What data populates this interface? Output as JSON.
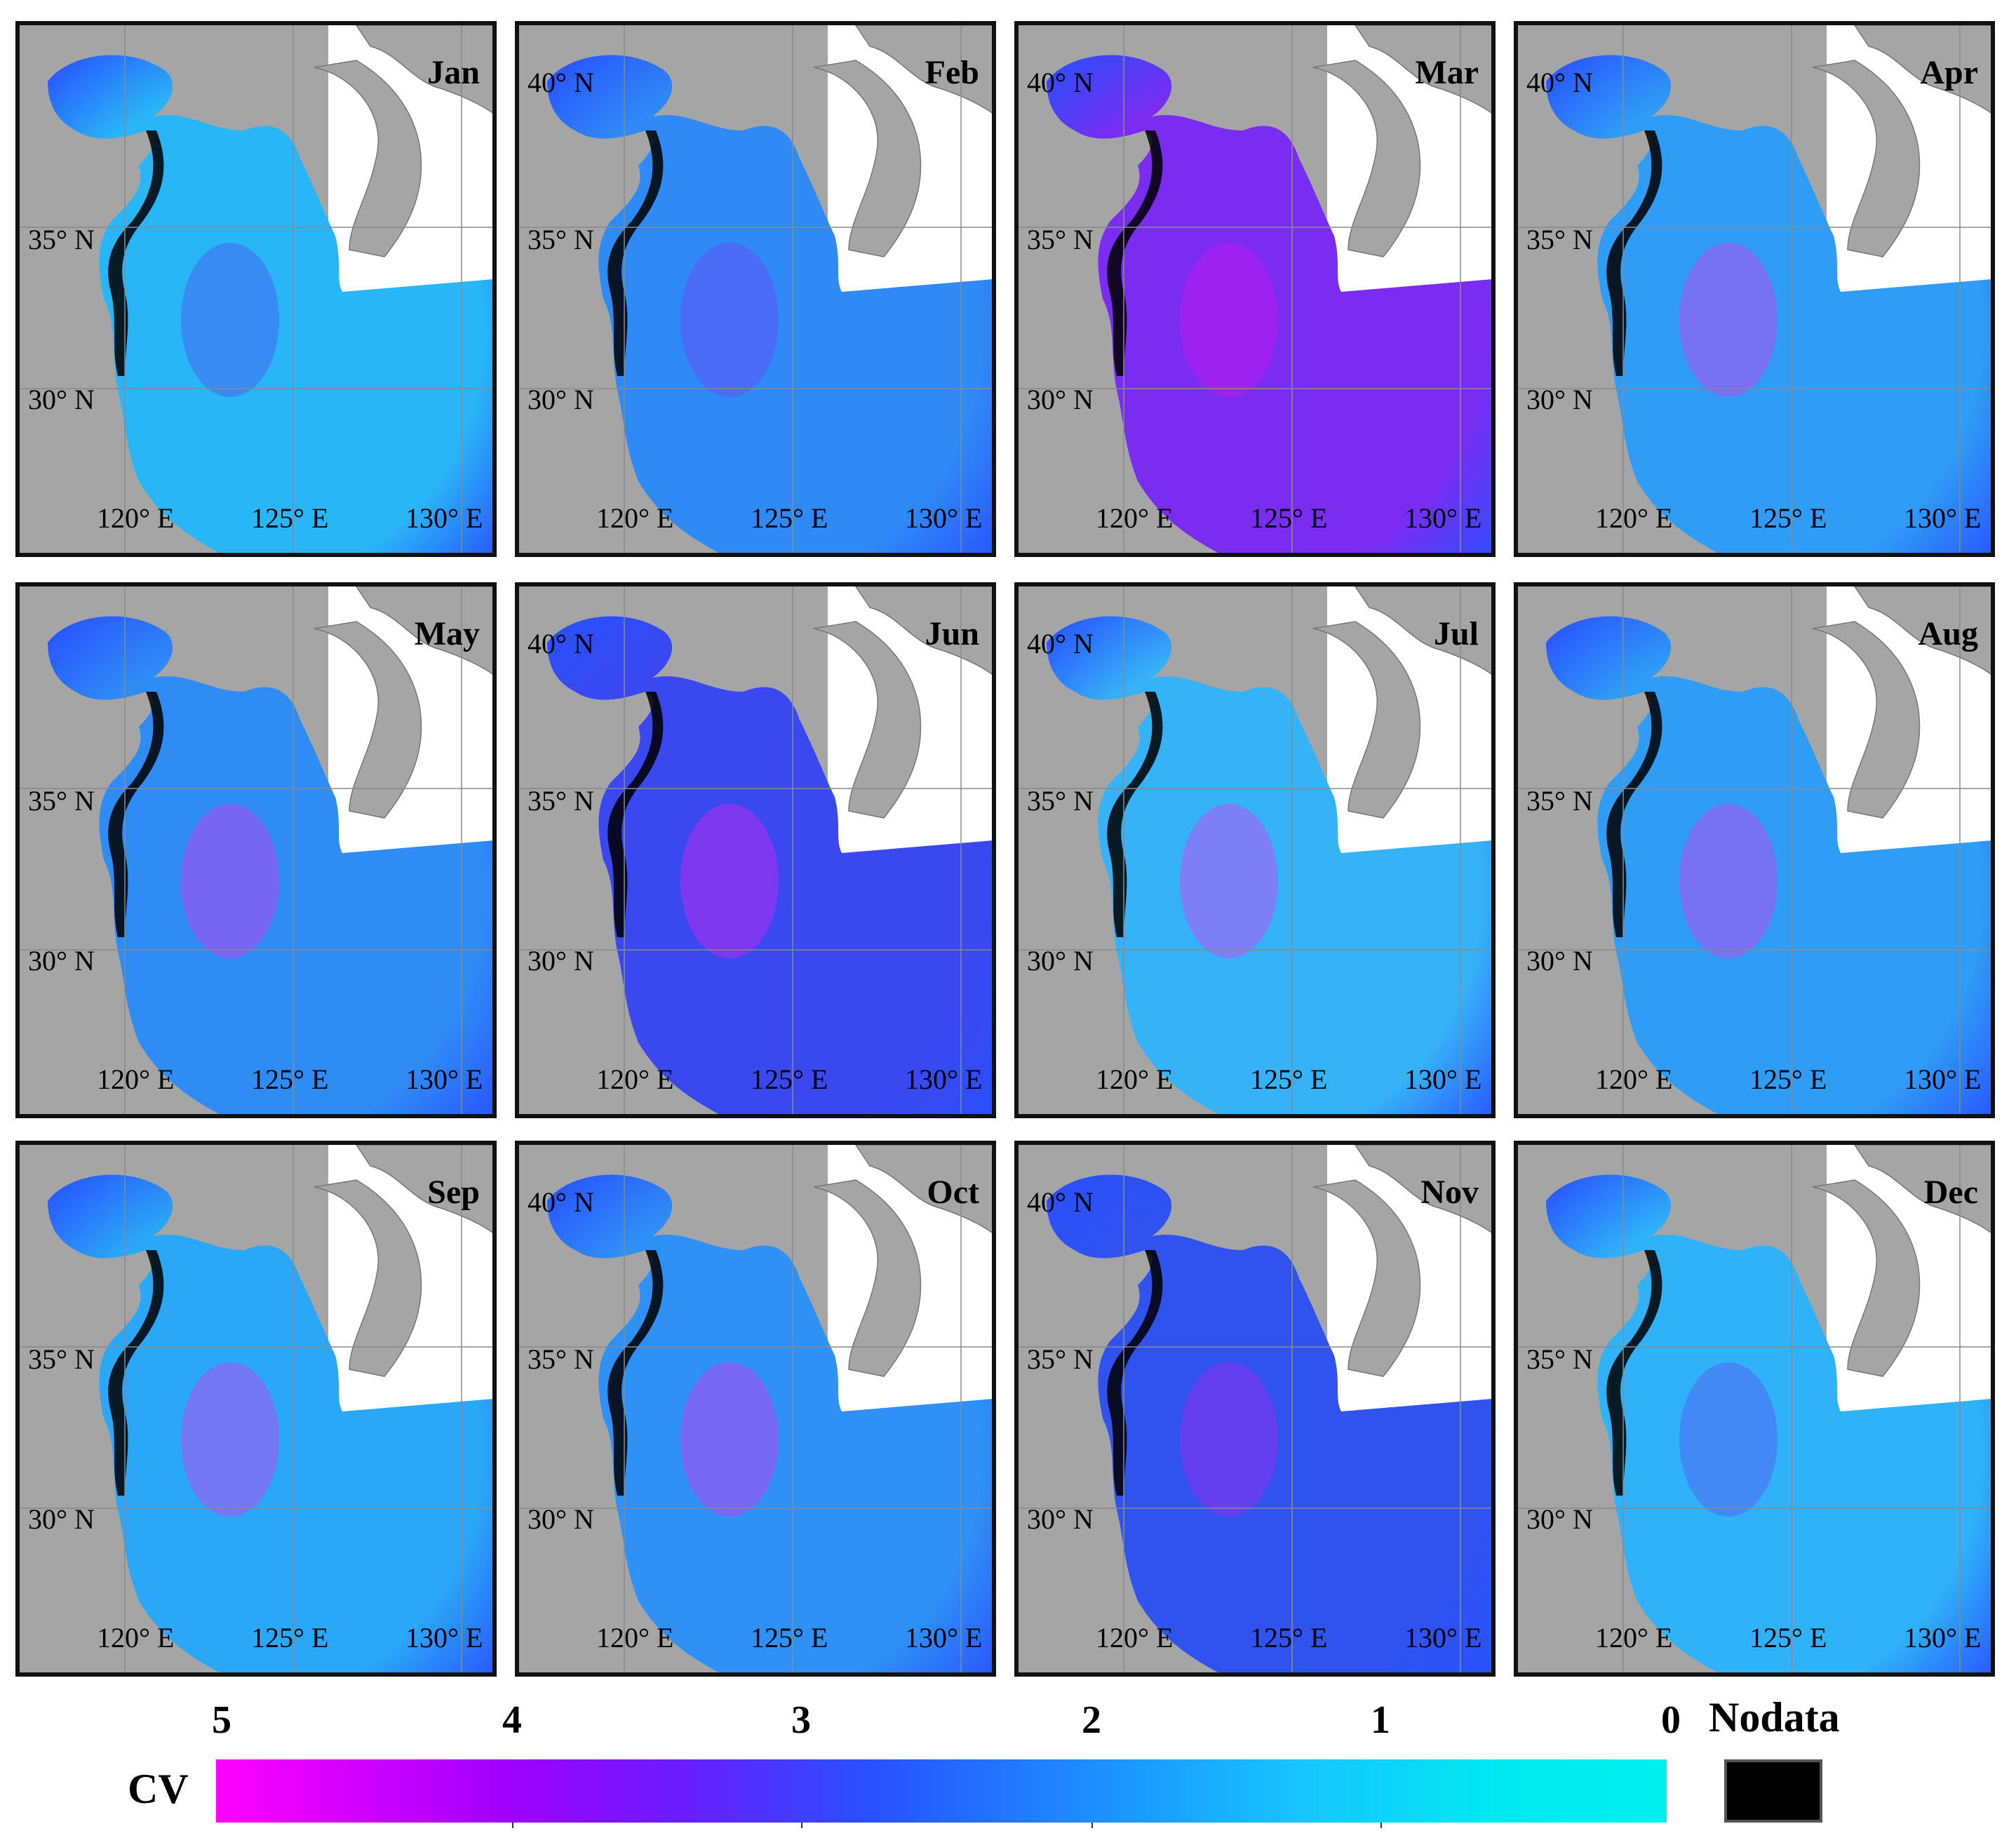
{
  "panels": [
    {
      "month": "Jan",
      "lat_labels": [
        "",
        "35° N",
        "30° N"
      ],
      "lon_labels": [
        "120° E",
        "125° E",
        "130° E"
      ],
      "tone": "#29b6f6",
      "accent": "#5a3cf0"
    },
    {
      "month": "Feb",
      "lat_labels": [
        "40° N",
        "35° N",
        "30° N"
      ],
      "lon_labels": [
        "120° E",
        "125° E",
        "130° E"
      ],
      "tone": "#2f8af5",
      "accent": "#7a32f5"
    },
    {
      "month": "Mar",
      "lat_labels": [
        "40° N",
        "35° N",
        "30° N"
      ],
      "lon_labels": [
        "120° E",
        "125° E",
        "130° E"
      ],
      "tone": "#7a2cf0",
      "accent": "#e312f0"
    },
    {
      "month": "Apr",
      "lat_labels": [
        "40° N",
        "35° N",
        "30° N"
      ],
      "lon_labels": [
        "120° E",
        "125° E",
        "130° E"
      ],
      "tone": "#2f9df5",
      "accent": "#ff20f0"
    },
    {
      "month": "May",
      "lat_labels": [
        "",
        "35° N",
        "30° N"
      ],
      "lon_labels": [
        "120° E",
        "125° E",
        "130° E"
      ],
      "tone": "#2f8cf5",
      "accent": "#ff20f0"
    },
    {
      "month": "Jun",
      "lat_labels": [
        "40° N",
        "35° N",
        "30° N"
      ],
      "lon_labels": [
        "120° E",
        "125° E",
        "130° E"
      ],
      "tone": "#3a48ef",
      "accent": "#ff20f0"
    },
    {
      "month": "Jul",
      "lat_labels": [
        "40° N",
        "35° N",
        "30° N"
      ],
      "lon_labels": [
        "120° E",
        "125° E",
        "130° E"
      ],
      "tone": "#36b2f7",
      "accent": "#ff20f0"
    },
    {
      "month": "Aug",
      "lat_labels": [
        "",
        "35° N",
        "30° N"
      ],
      "lon_labels": [
        "120° E",
        "125° E",
        "130° E"
      ],
      "tone": "#2f9df5",
      "accent": "#ff20f0"
    },
    {
      "month": "Sep",
      "lat_labels": [
        "",
        "35° N",
        "30° N"
      ],
      "lon_labels": [
        "120° E",
        "125° E",
        "130° E"
      ],
      "tone": "#2aa7f6",
      "accent": "#ff20f0"
    },
    {
      "month": "Oct",
      "lat_labels": [
        "40° N",
        "35° N",
        "30° N"
      ],
      "lon_labels": [
        "120° E",
        "125° E",
        "130° E"
      ],
      "tone": "#2f90f5",
      "accent": "#ff20f0"
    },
    {
      "month": "Nov",
      "lat_labels": [
        "40° N",
        "35° N",
        "30° N"
      ],
      "lon_labels": [
        "120° E",
        "125° E",
        "130° E"
      ],
      "tone": "#3052ee",
      "accent": "#c21cf0"
    },
    {
      "month": "Dec",
      "lat_labels": [
        "",
        "35° N",
        "30° N"
      ],
      "lon_labels": [
        "120° E",
        "125° E",
        "130° E"
      ],
      "tone": "#2fb2f7",
      "accent": "#6a3cf0"
    }
  ],
  "legend": {
    "title": "CV",
    "ticks": [
      "5",
      "4",
      "3",
      "2",
      "1",
      "0"
    ],
    "nodata": "Nodata",
    "colors": {
      "high": "#ff00ff",
      "mid": "#2850ff",
      "low": "#00f0f0",
      "nodata": "#000000"
    }
  }
}
